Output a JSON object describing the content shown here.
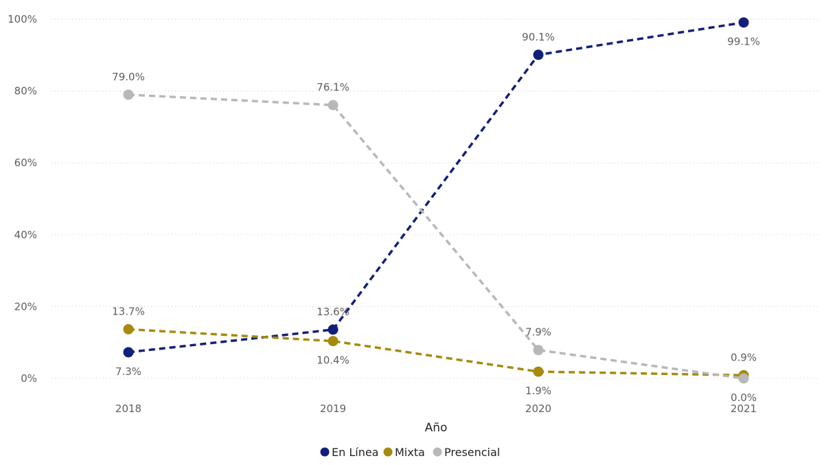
{
  "chart_data": {
    "type": "line",
    "title": "",
    "xlabel": "Año",
    "ylabel": "",
    "categories": [
      "2018",
      "2019",
      "2020",
      "2021"
    ],
    "ylim": [
      0,
      100
    ],
    "y_ticks": [
      "0%",
      "20%",
      "40%",
      "60%",
      "80%",
      "100%"
    ],
    "grid": true,
    "legend_position": "bottom",
    "line_style": "dashed",
    "series": [
      {
        "name": "En Línea",
        "color": "#12207a",
        "values": [
          7.3,
          13.6,
          90.1,
          99.1
        ],
        "labels": [
          "7.3%",
          "13.6%",
          "90.1%",
          "99.1%"
        ],
        "label_side": [
          "below",
          "above",
          "above",
          "below"
        ]
      },
      {
        "name": "Mixta",
        "color": "#a68a0c",
        "values": [
          13.7,
          10.4,
          1.9,
          0.9
        ],
        "labels": [
          "13.7%",
          "10.4%",
          "1.9%",
          "0.9%"
        ],
        "label_side": [
          "above",
          "below",
          "below",
          "above"
        ]
      },
      {
        "name": "Presencial",
        "color": "#b8b8b8",
        "values": [
          79.0,
          76.1,
          7.9,
          0.0
        ],
        "labels": [
          "79.0%",
          "76.1%",
          "7.9%",
          "0.0%"
        ],
        "label_side": [
          "above",
          "above",
          "above",
          "below"
        ]
      }
    ]
  }
}
